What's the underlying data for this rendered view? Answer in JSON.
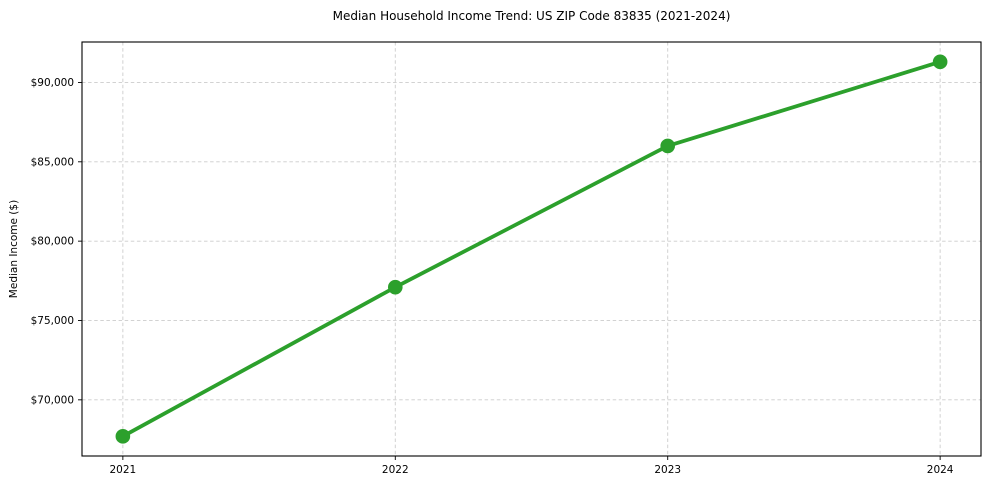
{
  "chart_data": {
    "type": "line",
    "title": "Median Household Income Trend: US ZIP Code 83835 (2021-2024)",
    "xlabel": "",
    "ylabel": "Median Income ($)",
    "x": [
      2021,
      2022,
      2023,
      2024
    ],
    "series": [
      {
        "name": "Median Household Income",
        "values": [
          67700,
          77100,
          86000,
          91300
        ]
      }
    ],
    "x_tick_labels": [
      "2021",
      "2022",
      "2023",
      "2024"
    ],
    "y_ticks": [
      70000,
      75000,
      80000,
      85000,
      90000
    ],
    "y_tick_labels": [
      "$70,000",
      "$75,000",
      "$80,000",
      "$85,000",
      "$90,000"
    ],
    "xlim": [
      2020.85,
      2024.15
    ],
    "ylim": [
      66460,
      92550
    ],
    "grid": true,
    "grid_style": "dashed",
    "legend": false,
    "colors": {
      "line": "#2ca02c",
      "marker": "#2ca02c",
      "grid": "#cccccc",
      "spine": "#000000",
      "text": "#000000",
      "background": "#ffffff"
    }
  }
}
